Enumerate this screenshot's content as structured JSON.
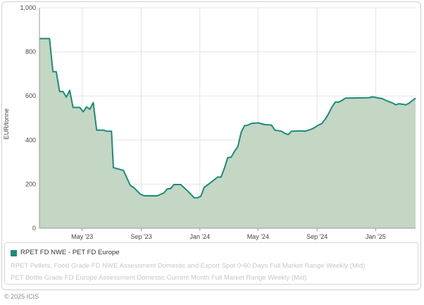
{
  "chart_data": {
    "type": "area",
    "ylabel": "EUR/tonne",
    "ylim": [
      0,
      1000
    ],
    "yticks": [
      0,
      200,
      400,
      600,
      800,
      1000
    ],
    "ytick_labels": [
      "0",
      "200",
      "400",
      "600",
      "800",
      "1,000"
    ],
    "xlim": [
      "2023-02-01",
      "2025-03-25"
    ],
    "xticks": [
      {
        "date": "2023-05-01",
        "label": "May '23"
      },
      {
        "date": "2023-09-01",
        "label": "Sep '23"
      },
      {
        "date": "2024-01-01",
        "label": "Jan '24"
      },
      {
        "date": "2024-05-01",
        "label": "May '24"
      },
      {
        "date": "2024-09-01",
        "label": "Sep '24"
      },
      {
        "date": "2025-01-01",
        "label": "Jan '25"
      }
    ],
    "grid": true,
    "legend_position": "bottom",
    "series": [
      {
        "name": "RPET FD NWE - PET FD Europe",
        "color": "#1a8c78",
        "fill": "#c4d6c4",
        "active": true,
        "points": [
          [
            "2023-02-01",
            860
          ],
          [
            "2023-02-22",
            860
          ],
          [
            "2023-03-01",
            710
          ],
          [
            "2023-03-08",
            710
          ],
          [
            "2023-03-15",
            620
          ],
          [
            "2023-03-22",
            620
          ],
          [
            "2023-03-29",
            595
          ],
          [
            "2023-04-05",
            625
          ],
          [
            "2023-04-12",
            548
          ],
          [
            "2023-04-26",
            548
          ],
          [
            "2023-05-03",
            528
          ],
          [
            "2023-05-10",
            550
          ],
          [
            "2023-05-17",
            540
          ],
          [
            "2023-05-24",
            570
          ],
          [
            "2023-05-31",
            445
          ],
          [
            "2023-06-14",
            445
          ],
          [
            "2023-06-21",
            440
          ],
          [
            "2023-07-01",
            440
          ],
          [
            "2023-07-05",
            275
          ],
          [
            "2023-07-26",
            262
          ],
          [
            "2023-08-09",
            195
          ],
          [
            "2023-08-16",
            185
          ],
          [
            "2023-08-30",
            155
          ],
          [
            "2023-09-06",
            148
          ],
          [
            "2023-09-13",
            147
          ],
          [
            "2023-10-04",
            147
          ],
          [
            "2023-10-18",
            160
          ],
          [
            "2023-10-25",
            178
          ],
          [
            "2023-11-01",
            180
          ],
          [
            "2023-11-08",
            198
          ],
          [
            "2023-11-22",
            198
          ],
          [
            "2023-12-06",
            170
          ],
          [
            "2023-12-13",
            155
          ],
          [
            "2023-12-20",
            138
          ],
          [
            "2023-12-27",
            138
          ],
          [
            "2024-01-03",
            145
          ],
          [
            "2024-01-10",
            185
          ],
          [
            "2024-01-24",
            208
          ],
          [
            "2024-02-07",
            232
          ],
          [
            "2024-02-14",
            232
          ],
          [
            "2024-02-21",
            272
          ],
          [
            "2024-02-28",
            320
          ],
          [
            "2024-03-06",
            322
          ],
          [
            "2024-03-13",
            348
          ],
          [
            "2024-03-20",
            370
          ],
          [
            "2024-03-27",
            435
          ],
          [
            "2024-04-03",
            465
          ],
          [
            "2024-04-10",
            468
          ],
          [
            "2024-04-17",
            475
          ],
          [
            "2024-05-01",
            478
          ],
          [
            "2024-05-15",
            470
          ],
          [
            "2024-05-29",
            468
          ],
          [
            "2024-06-05",
            445
          ],
          [
            "2024-06-19",
            440
          ],
          [
            "2024-06-26",
            430
          ],
          [
            "2024-07-03",
            425
          ],
          [
            "2024-07-10",
            440
          ],
          [
            "2024-07-31",
            442
          ],
          [
            "2024-08-07",
            440
          ],
          [
            "2024-08-21",
            450
          ],
          [
            "2024-08-28",
            458
          ],
          [
            "2024-09-04",
            468
          ],
          [
            "2024-09-11",
            475
          ],
          [
            "2024-09-18",
            495
          ],
          [
            "2024-09-25",
            520
          ],
          [
            "2024-10-02",
            550
          ],
          [
            "2024-10-09",
            572
          ],
          [
            "2024-10-16",
            572
          ],
          [
            "2024-10-23",
            580
          ],
          [
            "2024-10-30",
            590
          ],
          [
            "2024-12-18",
            592
          ],
          [
            "2024-12-25",
            596
          ],
          [
            "2025-01-01",
            593
          ],
          [
            "2025-01-15",
            588
          ],
          [
            "2025-01-22",
            580
          ],
          [
            "2025-02-05",
            568
          ],
          [
            "2025-02-12",
            560
          ],
          [
            "2025-02-19",
            565
          ],
          [
            "2025-03-05",
            560
          ],
          [
            "2025-03-12",
            568
          ],
          [
            "2025-03-25",
            590
          ]
        ]
      },
      {
        "name": "RPET Pellets, Food Grade FD NWE Assessment Domestic and Export Spot 0-60 Days Full Market Range Weekly (Mid)",
        "color": "#cccccc",
        "active": false
      },
      {
        "name": "PET Bottle Grade FD Europe Assessment Domestic Current Month Full Market Range Weekly (Mid)",
        "color": "#cccccc",
        "active": false
      }
    ]
  },
  "footer": {
    "copyright": "© 2025 ICIS"
  }
}
